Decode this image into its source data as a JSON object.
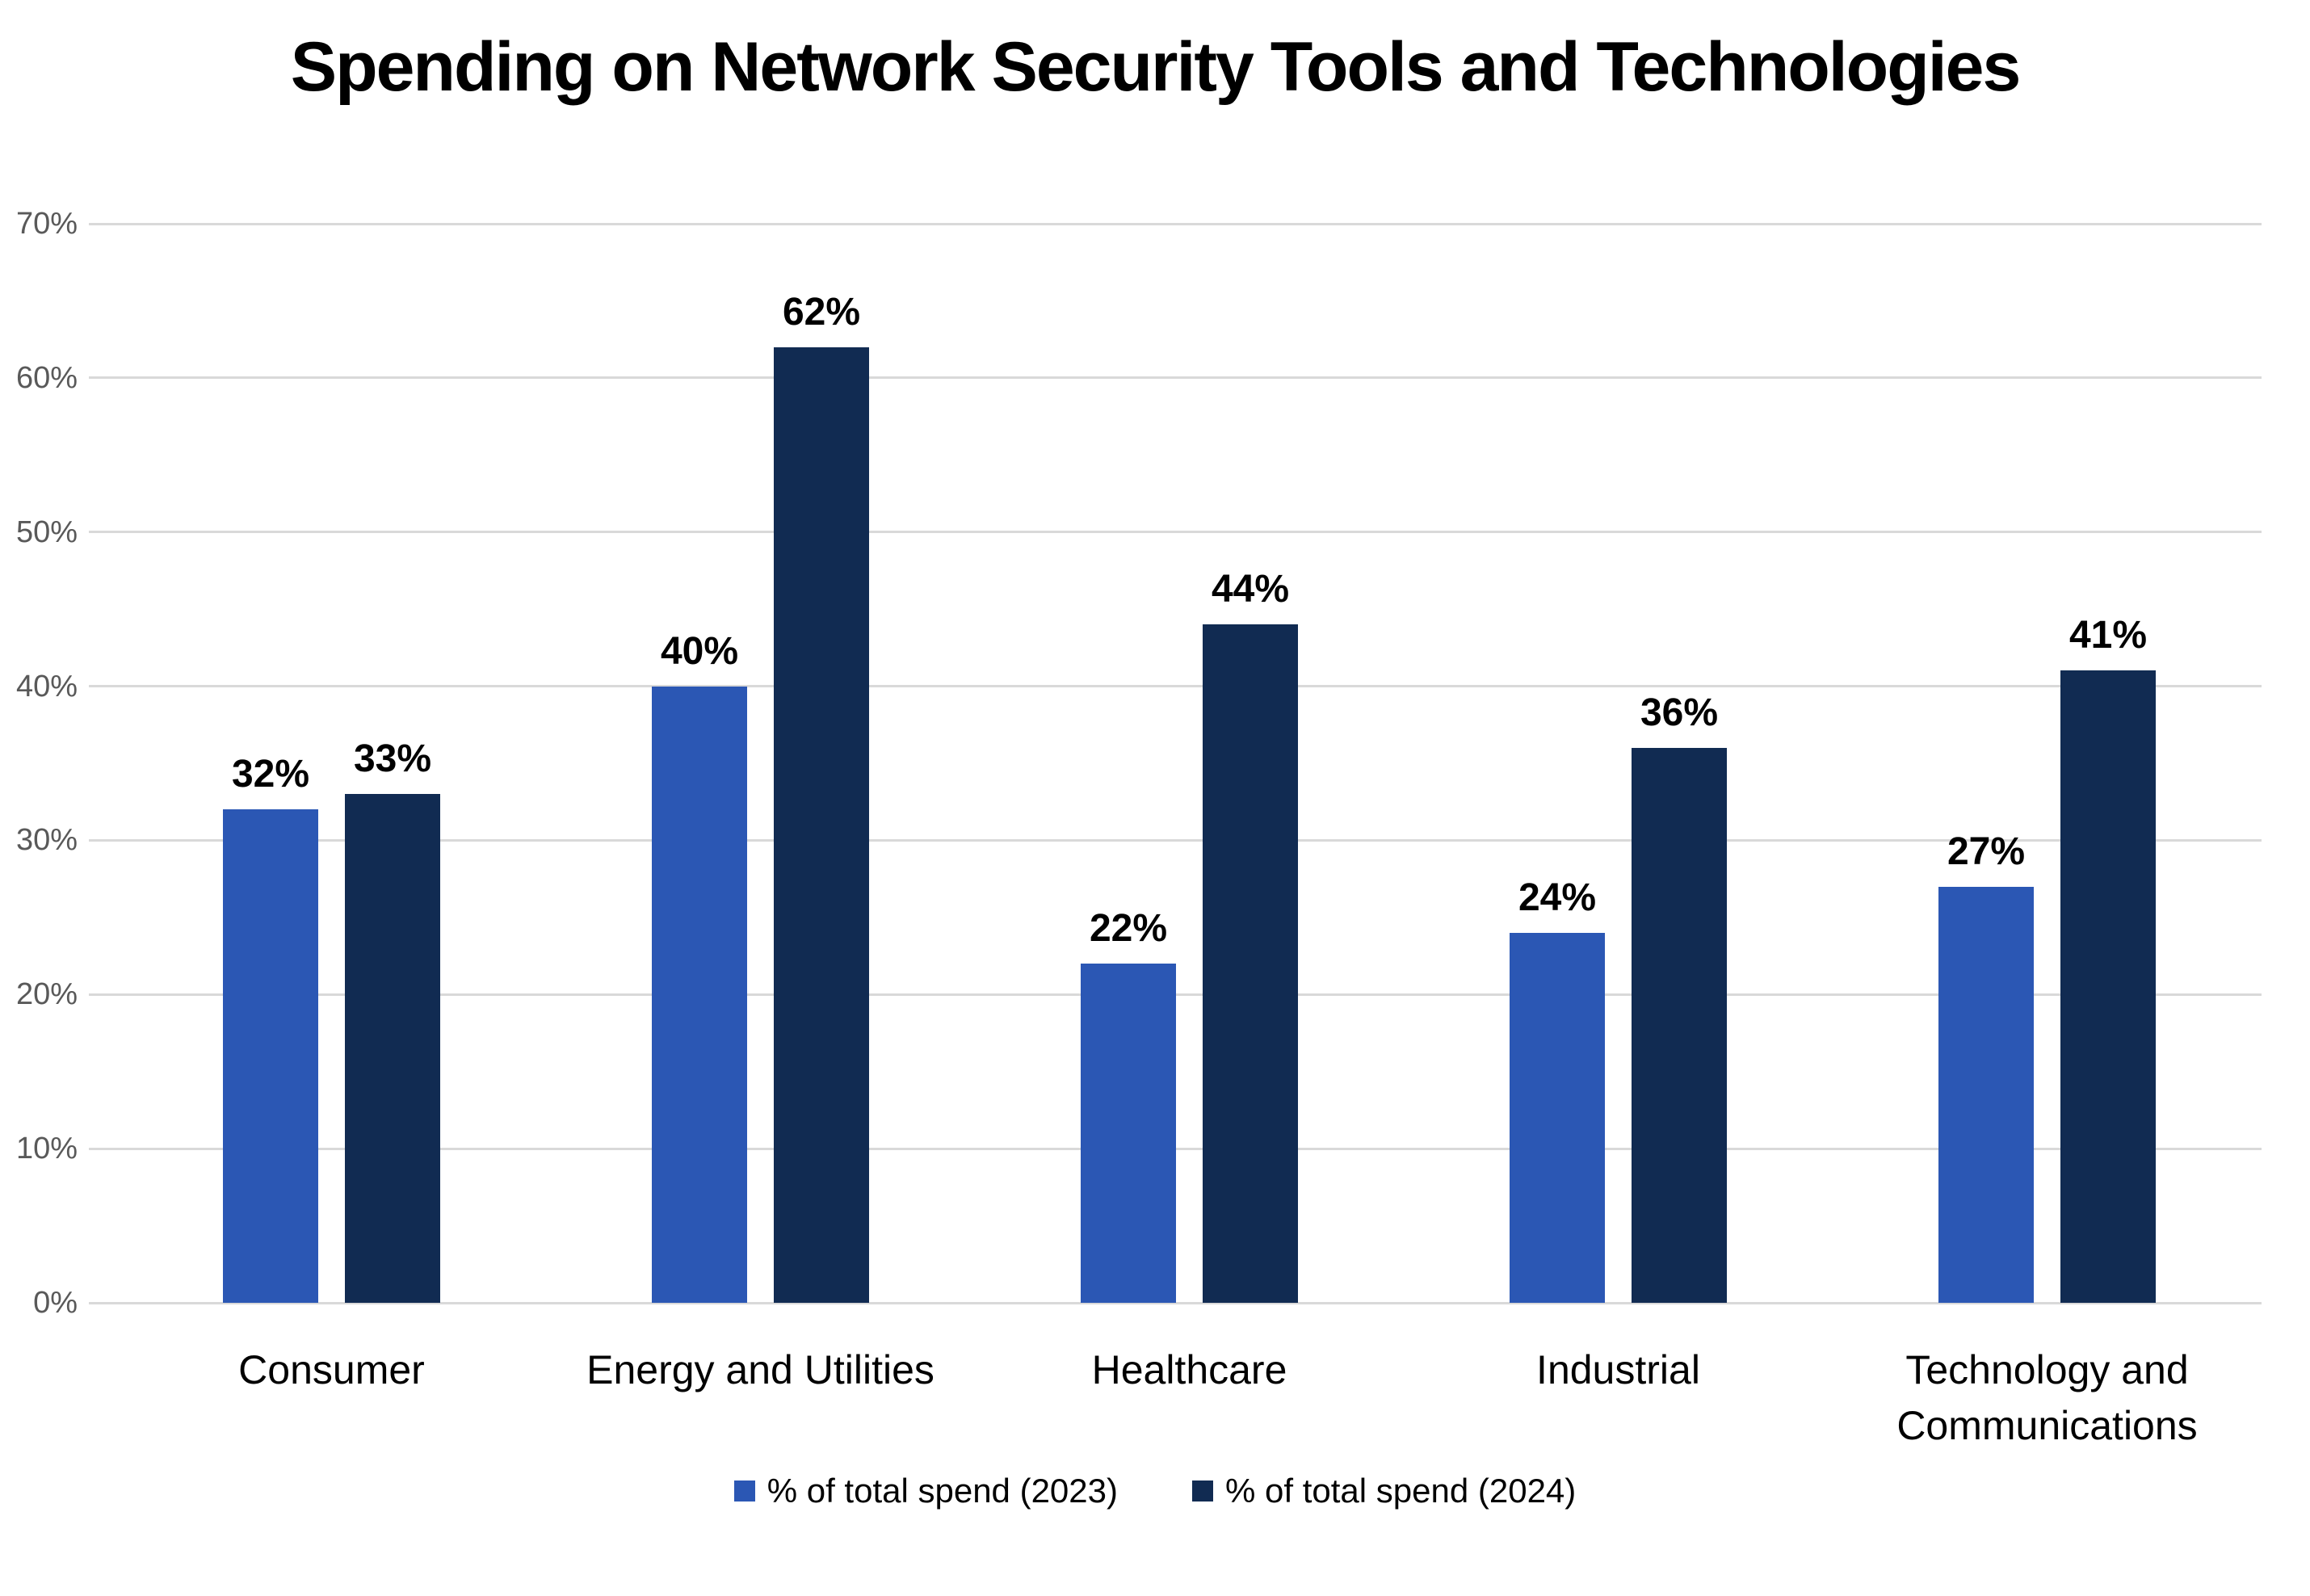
{
  "page": {
    "background": "#FFFFFF"
  },
  "chart_data": {
    "type": "bar",
    "title": "Spending on Network Security Tools and Technologies",
    "categories": [
      "Consumer",
      "Energy and Utilities",
      "Healthcare",
      "Industrial",
      "Technology and Communications"
    ],
    "series": [
      {
        "name": "% of total spend (2023)",
        "year": "2023",
        "color": "#2B57B4",
        "values": [
          32,
          40,
          22,
          24,
          27
        ],
        "data_labels": [
          "32%",
          "40%",
          "22%",
          "24%",
          "27%"
        ]
      },
      {
        "name": "% of total spend (2024)",
        "year": "2024",
        "color": "#112B52",
        "values": [
          33,
          62,
          44,
          36,
          41
        ],
        "data_labels": [
          "33%",
          "62%",
          "44%",
          "36%",
          "41%"
        ]
      }
    ],
    "xlabel": "",
    "ylabel": "",
    "ylim": [
      0,
      70
    ],
    "ytick_interval": 10,
    "yticks": [
      "0%",
      "10%",
      "20%",
      "30%",
      "40%",
      "50%",
      "60%",
      "70%"
    ],
    "grid": "horizontal",
    "legend_position": "bottom",
    "styles": {
      "grid_color": "#D9D9D9",
      "axis_text_color": "#595959",
      "label_text_color": "#000000",
      "background": "#FFFFFF"
    }
  }
}
